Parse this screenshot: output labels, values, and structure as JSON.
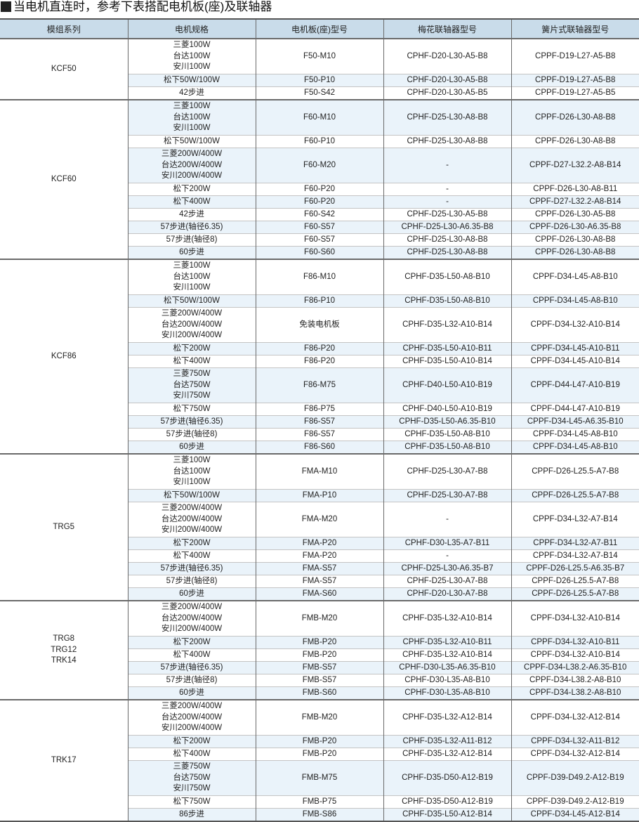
{
  "title": "当电机直连时，参考下表搭配电机板(座)及联轴器",
  "headers": [
    "模组系列",
    "电机规格",
    "电机板(座)型号",
    "梅花联轴器型号",
    "簧片式联轴器型号"
  ],
  "groups": [
    {
      "series": [
        "KCF50"
      ],
      "rows": [
        {
          "spec": [
            "三菱100W",
            "台达100W",
            "安川100W"
          ],
          "plate": "F50-M10",
          "plum": "CPHF-D20-L30-A5-B8",
          "leaf": "CPPF-D19-L27-A5-B8",
          "shaded": false
        },
        {
          "spec": [
            "松下50W/100W"
          ],
          "plate": "F50-P10",
          "plum": "CPHF-D20-L30-A5-B8",
          "leaf": "CPPF-D19-L27-A5-B8",
          "shaded": true
        },
        {
          "spec": [
            "42步进"
          ],
          "plate": "F50-S42",
          "plum": "CPHF-D20-L30-A5-B5",
          "leaf": "CPPF-D19-L27-A5-B5",
          "shaded": false
        }
      ]
    },
    {
      "series": [
        "KCF60"
      ],
      "rows": [
        {
          "spec": [
            "三菱100W",
            "台达100W",
            "安川100W"
          ],
          "plate": "F60-M10",
          "plum": "CPHF-D25-L30-A8-B8",
          "leaf": "CPPF-D26-L30-A8-B8",
          "shaded": true
        },
        {
          "spec": [
            "松下50W/100W"
          ],
          "plate": "F60-P10",
          "plum": "CPHF-D25-L30-A8-B8",
          "leaf": "CPPF-D26-L30-A8-B8",
          "shaded": false
        },
        {
          "spec": [
            "三菱200W/400W",
            "台达200W/400W",
            "安川200W/400W"
          ],
          "plate": "F60-M20",
          "plum": "-",
          "leaf": "CPPF-D27-L32.2-A8-B14",
          "shaded": true
        },
        {
          "spec": [
            "松下200W"
          ],
          "plate": "F60-P20",
          "plum": "-",
          "leaf": "CPPF-D26-L30-A8-B11",
          "shaded": false
        },
        {
          "spec": [
            "松下400W"
          ],
          "plate": "F60-P20",
          "plum": "-",
          "leaf": "CPPF-D27-L32.2-A8-B14",
          "shaded": true
        },
        {
          "spec": [
            "42步进"
          ],
          "plate": "F60-S42",
          "plum": "CPHF-D25-L30-A5-B8",
          "leaf": "CPPF-D26-L30-A5-B8",
          "shaded": false
        },
        {
          "spec": [
            "57步进(轴径6.35)"
          ],
          "plate": "F60-S57",
          "plum": "CPHF-D25-L30-A6.35-B8",
          "leaf": "CPPF-D26-L30-A6.35-B8",
          "shaded": true
        },
        {
          "spec": [
            "57步进(轴径8)"
          ],
          "plate": "F60-S57",
          "plum": "CPHF-D25-L30-A8-B8",
          "leaf": "CPPF-D26-L30-A8-B8",
          "shaded": false
        },
        {
          "spec": [
            "60步进"
          ],
          "plate": "F60-S60",
          "plum": "CPHF-D25-L30-A8-B8",
          "leaf": "CPPF-D26-L30-A8-B8",
          "shaded": true
        }
      ]
    },
    {
      "series": [
        "KCF86"
      ],
      "rows": [
        {
          "spec": [
            "三菱100W",
            "台达100W",
            "安川100W"
          ],
          "plate": "F86-M10",
          "plum": "CPHF-D35-L50-A8-B10",
          "leaf": "CPPF-D34-L45-A8-B10",
          "shaded": false
        },
        {
          "spec": [
            "松下50W/100W"
          ],
          "plate": "F86-P10",
          "plum": "CPHF-D35-L50-A8-B10",
          "leaf": "CPPF-D34-L45-A8-B10",
          "shaded": true
        },
        {
          "spec": [
            "三菱200W/400W",
            "台达200W/400W",
            "安川200W/400W"
          ],
          "plate": "免装电机板",
          "plum": "CPHF-D35-L32-A10-B14",
          "leaf": "CPPF-D34-L32-A10-B14",
          "shaded": false
        },
        {
          "spec": [
            "松下200W"
          ],
          "plate": "F86-P20",
          "plum": "CPHF-D35-L50-A10-B11",
          "leaf": "CPPF-D34-L45-A10-B11",
          "shaded": true
        },
        {
          "spec": [
            "松下400W"
          ],
          "plate": "F86-P20",
          "plum": "CPHF-D35-L50-A10-B14",
          "leaf": "CPPF-D34-L45-A10-B14",
          "shaded": false
        },
        {
          "spec": [
            "三菱750W",
            "台达750W",
            "安川750W"
          ],
          "plate": "F86-M75",
          "plum": "CPHF-D40-L50-A10-B19",
          "leaf": "CPPF-D44-L47-A10-B19",
          "shaded": true
        },
        {
          "spec": [
            "松下750W"
          ],
          "plate": "F86-P75",
          "plum": "CPHF-D40-L50-A10-B19",
          "leaf": "CPPF-D44-L47-A10-B19",
          "shaded": false
        },
        {
          "spec": [
            "57步进(轴径6.35)"
          ],
          "plate": "F86-S57",
          "plum": "CPHF-D35-L50-A6.35-B10",
          "leaf": "CPPF-D34-L45-A6.35-B10",
          "shaded": true
        },
        {
          "spec": [
            "57步进(轴径8)"
          ],
          "plate": "F86-S57",
          "plum": "CPHF-D35-L50-A8-B10",
          "leaf": "CPPF-D34-L45-A8-B10",
          "shaded": false
        },
        {
          "spec": [
            "60步进"
          ],
          "plate": "F86-S60",
          "plum": "CPHF-D35-L50-A8-B10",
          "leaf": "CPPF-D34-L45-A8-B10",
          "shaded": true
        }
      ]
    },
    {
      "series": [
        "TRG5"
      ],
      "rows": [
        {
          "spec": [
            "三菱100W",
            "台达100W",
            "安川100W"
          ],
          "plate": "FMA-M10",
          "plum": "CPHF-D25-L30-A7-B8",
          "leaf": "CPPF-D26-L25.5-A7-B8",
          "shaded": false
        },
        {
          "spec": [
            "松下50W/100W"
          ],
          "plate": "FMA-P10",
          "plum": "CPHF-D25-L30-A7-B8",
          "leaf": "CPPF-D26-L25.5-A7-B8",
          "shaded": true
        },
        {
          "spec": [
            "三菱200W/400W",
            "台达200W/400W",
            "安川200W/400W"
          ],
          "plate": "FMA-M20",
          "plum": "-",
          "leaf": "CPPF-D34-L32-A7-B14",
          "shaded": false
        },
        {
          "spec": [
            "松下200W"
          ],
          "plate": "FMA-P20",
          "plum": "CPHF-D30-L35-A7-B11",
          "leaf": "CPPF-D34-L32-A7-B11",
          "shaded": true
        },
        {
          "spec": [
            "松下400W"
          ],
          "plate": "FMA-P20",
          "plum": "-",
          "leaf": "CPPF-D34-L32-A7-B14",
          "shaded": false
        },
        {
          "spec": [
            "57步进(轴径6.35)"
          ],
          "plate": "FMA-S57",
          "plum": "CPHF-D25-L30-A6.35-B7",
          "leaf": "CPPF-D26-L25.5-A6.35-B7",
          "shaded": true
        },
        {
          "spec": [
            "57步进(轴径8)"
          ],
          "plate": "FMA-S57",
          "plum": "CPHF-D25-L30-A7-B8",
          "leaf": "CPPF-D26-L25.5-A7-B8",
          "shaded": false
        },
        {
          "spec": [
            "60步进"
          ],
          "plate": "FMA-S60",
          "plum": "CPHF-D20-L30-A7-B8",
          "leaf": "CPPF-D26-L25.5-A7-B8",
          "shaded": true
        }
      ]
    },
    {
      "series": [
        "TRG8",
        "TRG12",
        "TRK14"
      ],
      "rows": [
        {
          "spec": [
            "三菱200W/400W",
            "台达200W/400W",
            "安川200W/400W"
          ],
          "plate": "FMB-M20",
          "plum": "CPHF-D35-L32-A10-B14",
          "leaf": "CPPF-D34-L32-A10-B14",
          "shaded": false
        },
        {
          "spec": [
            "松下200W"
          ],
          "plate": "FMB-P20",
          "plum": "CPHF-D35-L32-A10-B11",
          "leaf": "CPPF-D34-L32-A10-B11",
          "shaded": true
        },
        {
          "spec": [
            "松下400W"
          ],
          "plate": "FMB-P20",
          "plum": "CPHF-D35-L32-A10-B14",
          "leaf": "CPPF-D34-L32-A10-B14",
          "shaded": false
        },
        {
          "spec": [
            "57步进(轴径6.35)"
          ],
          "plate": "FMB-S57",
          "plum": "CPHF-D30-L35-A6.35-B10",
          "leaf": "CPPF-D34-L38.2-A6.35-B10",
          "shaded": true
        },
        {
          "spec": [
            "57步进(轴径8)"
          ],
          "plate": "FMB-S57",
          "plum": "CPHF-D30-L35-A8-B10",
          "leaf": "CPPF-D34-L38.2-A8-B10",
          "shaded": false
        },
        {
          "spec": [
            "60步进"
          ],
          "plate": "FMB-S60",
          "plum": "CPHF-D30-L35-A8-B10",
          "leaf": "CPPF-D34-L38.2-A8-B10",
          "shaded": true
        }
      ]
    },
    {
      "series": [
        "TRK17"
      ],
      "rows": [
        {
          "spec": [
            "三菱200W/400W",
            "台达200W/400W",
            "安川200W/400W"
          ],
          "plate": "FMB-M20",
          "plum": "CPHF-D35-L32-A12-B14",
          "leaf": "CPPF-D34-L32-A12-B14",
          "shaded": false
        },
        {
          "spec": [
            "松下200W"
          ],
          "plate": "FMB-P20",
          "plum": "CPHF-D35-L32-A11-B12",
          "leaf": "CPPF-D34-L32-A11-B12",
          "shaded": true
        },
        {
          "spec": [
            "松下400W"
          ],
          "plate": "FMB-P20",
          "plum": "CPHF-D35-L32-A12-B14",
          "leaf": "CPPF-D34-L32-A12-B14",
          "shaded": false
        },
        {
          "spec": [
            "三菱750W",
            "台达750W",
            "安川750W"
          ],
          "plate": "FMB-M75",
          "plum": "CPHF-D35-D50-A12-B19",
          "leaf": "CPPF-D39-D49.2-A12-B19",
          "shaded": true
        },
        {
          "spec": [
            "松下750W"
          ],
          "plate": "FMB-P75",
          "plum": "CPHF-D35-D50-A12-B19",
          "leaf": "CPPF-D39-D49.2-A12-B19",
          "shaded": false
        },
        {
          "spec": [
            "86步进"
          ],
          "plate": "FMB-S86",
          "plum": "CPHF-D35-L50-A12-B14",
          "leaf": "CPPF-D34-L45-A12-B14",
          "shaded": true
        }
      ]
    }
  ]
}
